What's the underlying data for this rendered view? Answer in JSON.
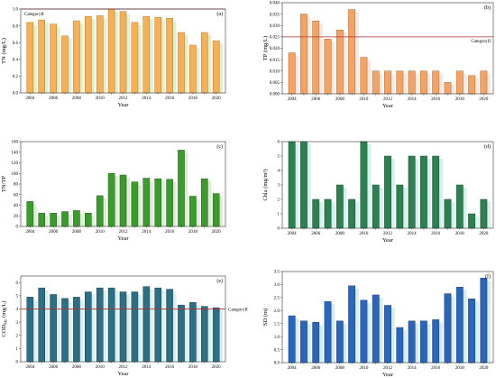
{
  "panel_labels": [
    "(a)",
    "(b)",
    "(c)",
    "(d)",
    "(e)",
    "(f)"
  ],
  "chart_data": [
    {
      "type": "bar",
      "panel": "(a)",
      "xlabel": "Year",
      "ylabel": "TN (mg/L)",
      "x": [
        2004,
        2005,
        2006,
        2007,
        2008,
        2009,
        2010,
        2011,
        2012,
        2013,
        2014,
        2015,
        2016,
        2017,
        2018,
        2019,
        2020
      ],
      "x_ticks": [
        "2004",
        "2006",
        "2008",
        "2010",
        "2012",
        "2014",
        "2016",
        "2018",
        "2020"
      ],
      "values": [
        0.84,
        0.87,
        0.82,
        0.68,
        0.86,
        0.91,
        0.92,
        1.0,
        0.97,
        0.84,
        0.91,
        0.9,
        0.89,
        0.72,
        0.57,
        0.72,
        0.62
      ],
      "ylim": [
        0,
        1.0
      ],
      "y_ticks": [
        "0.0",
        "0.2",
        "0.4",
        "0.6",
        "0.8",
        "1.0"
      ],
      "bar_color": "#f2b15a",
      "bar_edge": "#b87620",
      "shadow_color": "#d8e9b8",
      "reference_line": {
        "value": 1.0,
        "label": "CategoryII",
        "color": "#b03030"
      },
      "grid": false
    },
    {
      "type": "bar",
      "panel": "(b)",
      "xlabel": "Year",
      "ylabel": "TP (mg/L)",
      "x": [
        2004,
        2005,
        2006,
        2007,
        2008,
        2009,
        2010,
        2011,
        2012,
        2013,
        2014,
        2015,
        2016,
        2017,
        2018,
        2019,
        2020
      ],
      "x_ticks": [
        "2004",
        "2006",
        "2008",
        "2010",
        "2012",
        "2014",
        "2016",
        "2018",
        "2020"
      ],
      "values": [
        0.018,
        0.035,
        0.032,
        0.024,
        0.028,
        0.037,
        0.016,
        0.01,
        0.01,
        0.01,
        0.01,
        0.01,
        0.01,
        0.005,
        0.01,
        0.008,
        0.01
      ],
      "ylim": [
        0,
        0.04
      ],
      "y_ticks": [
        "0.000",
        "0.005",
        "0.010",
        "0.015",
        "0.020",
        "0.025",
        "0.030",
        "0.035",
        "0.040"
      ],
      "bar_color": "#f0a468",
      "bar_edge": "#b5632a",
      "shadow_color": "#f7ded0",
      "reference_line": {
        "value": 0.025,
        "label": "CategoryII",
        "color": "#b03030"
      },
      "grid": false
    },
    {
      "type": "bar",
      "panel": "(c)",
      "xlabel": "Year",
      "ylabel": "TN/TP",
      "x": [
        2004,
        2005,
        2006,
        2007,
        2008,
        2009,
        2010,
        2011,
        2012,
        2013,
        2014,
        2015,
        2016,
        2017,
        2018,
        2019,
        2020
      ],
      "x_ticks": [
        "2004",
        "2006",
        "2008",
        "2010",
        "2012",
        "2014",
        "2016",
        "2018",
        "2020"
      ],
      "values": [
        47,
        25,
        25,
        28,
        30,
        25,
        58,
        100,
        97,
        84,
        91,
        90,
        89,
        144,
        57,
        90,
        62
      ],
      "ylim": [
        0,
        160
      ],
      "y_ticks": [
        "0",
        "20",
        "40",
        "60",
        "80",
        "100",
        "120",
        "140",
        "160"
      ],
      "bar_color": "#3d9a2e",
      "bar_edge": "#1f5e16",
      "shadow_color": "#cfe8c4",
      "grid": false
    },
    {
      "type": "bar",
      "panel": "(d)",
      "xlabel": "Year",
      "ylabel": "Chla (mg/m³)",
      "x": [
        2004,
        2005,
        2006,
        2007,
        2008,
        2009,
        2010,
        2011,
        2012,
        2013,
        2014,
        2015,
        2016,
        2017,
        2018,
        2019,
        2020
      ],
      "x_ticks": [
        "2004",
        "2006",
        "2008",
        "2010",
        "2012",
        "2014",
        "2016",
        "2018",
        "2020"
      ],
      "values": [
        6,
        6,
        2,
        2,
        3,
        2,
        6,
        3,
        5,
        3,
        5,
        5,
        5,
        2,
        3,
        1,
        2
      ],
      "ylim": [
        0,
        6
      ],
      "y_ticks": [
        "0",
        "1",
        "2",
        "3",
        "4",
        "5",
        "6"
      ],
      "bar_color": "#2f7f52",
      "bar_edge": "#184c30",
      "shadow_color": "#c2ece4",
      "grid": false
    },
    {
      "type": "bar",
      "panel": "(e)",
      "xlabel": "Year",
      "ylabel": "COD",
      "ylabel_sub": "Mn",
      "ylabel_unit": " (mg/L)",
      "x": [
        2004,
        2005,
        2006,
        2007,
        2008,
        2009,
        2010,
        2011,
        2012,
        2013,
        2014,
        2015,
        2016,
        2017,
        2018,
        2019,
        2020
      ],
      "x_ticks": [
        "2004",
        "2006",
        "2008",
        "2010",
        "2012",
        "2014",
        "2016",
        "2018",
        "2020"
      ],
      "values": [
        4.9,
        5.6,
        5.1,
        4.8,
        4.9,
        5.3,
        5.6,
        5.6,
        5.3,
        5.3,
        5.7,
        5.6,
        5.5,
        4.3,
        4.5,
        4.2,
        4.1
      ],
      "ylim": [
        0,
        6.5
      ],
      "y_ticks": [
        "0",
        "1",
        "2",
        "3",
        "4",
        "5",
        "6"
      ],
      "bar_color": "#2f6f85",
      "bar_edge": "#173e4d",
      "shadow_color": "#c8eaea",
      "reference_line": {
        "value": 4.0,
        "label": "CategoryII",
        "color": "#b03030"
      },
      "grid": false
    },
    {
      "type": "bar",
      "panel": "(f)",
      "xlabel": "Year",
      "ylabel": "SD (m)",
      "x": [
        2004,
        2005,
        2006,
        2007,
        2008,
        2009,
        2010,
        2011,
        2012,
        2013,
        2014,
        2015,
        2016,
        2017,
        2018,
        2019,
        2020
      ],
      "x_ticks": [
        "2004",
        "2006",
        "2008",
        "2010",
        "2012",
        "2014",
        "2016",
        "2018",
        "2020"
      ],
      "values": [
        1.8,
        1.6,
        1.55,
        2.35,
        1.6,
        2.95,
        2.4,
        2.6,
        2.2,
        1.35,
        1.6,
        1.6,
        1.65,
        2.65,
        2.9,
        2.45,
        3.25
      ],
      "ylim": [
        0,
        3.5
      ],
      "y_ticks": [
        "0.0",
        "0.5",
        "1.0",
        "1.5",
        "2.0",
        "2.5",
        "3.0",
        "3.5"
      ],
      "bar_color": "#2c66b8",
      "bar_edge": "#173a75",
      "shadow_color": "#c4e6ef",
      "grid": false
    }
  ]
}
